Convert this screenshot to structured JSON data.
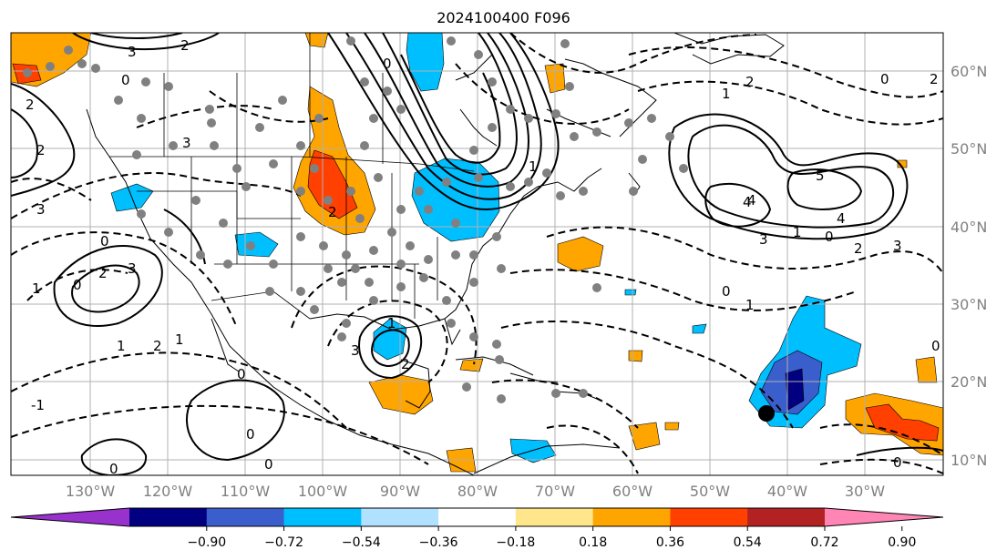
{
  "title": "2024100400 F096",
  "lat_labels": [
    "60°N",
    "50°N",
    "40°N",
    "30°N",
    "20°N",
    "10°N"
  ],
  "lon_labels": [
    "130°W",
    "120°W",
    "110°W",
    "100°W",
    "90°W",
    "80°W",
    "70°W",
    "60°W",
    "50°W",
    "40°W",
    "30°W"
  ],
  "colorbar": {
    "colors": [
      "#9932cc",
      "#000080",
      "#3a5fcd",
      "#00bfff",
      "#b0e2ff",
      "#ffffff",
      "#ffe68a",
      "#ffa500",
      "#ff4000",
      "#b22222",
      "#ff85b4"
    ],
    "tick_labels": [
      "−0.90",
      "−0.72",
      "−0.54",
      "−0.36",
      "−0.18",
      "0.18",
      "0.36",
      "0.54",
      "0.72",
      "0.90"
    ]
  },
  "contour_labels": [
    "3",
    "2",
    "0",
    "2",
    "4",
    "1",
    "3",
    "0",
    "2",
    "3",
    "2",
    "0",
    "1",
    "2",
    "0",
    "1",
    "2",
    "3",
    "4",
    "5",
    "4",
    "3",
    "0",
    "2",
    "0",
    "1",
    "0",
    "1",
    "2",
    "3",
    "0",
    "1",
    "2",
    "3",
    "-1",
    "0",
    "1",
    "1",
    "0",
    "2",
    "0",
    "0",
    "0"
  ]
}
